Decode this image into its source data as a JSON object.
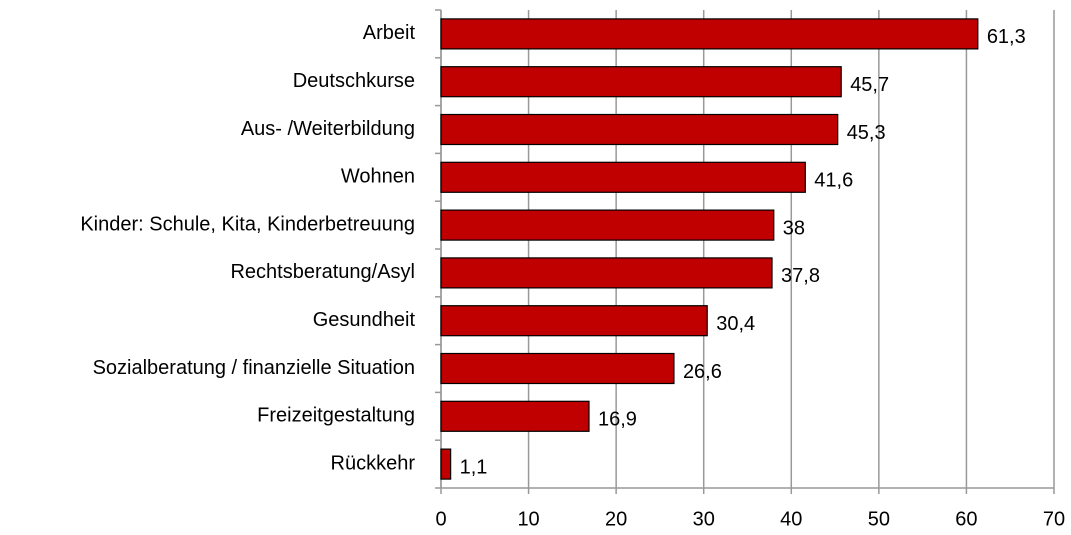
{
  "chart_data": {
    "type": "hbar",
    "categories": [
      "Arbeit",
      "Deutschkurse",
      "Aus- /Weiterbildung",
      "Wohnen",
      "Kinder: Schule, Kita, Kinderbetreuung",
      "Rechtsberatung/Asyl",
      "Gesundheit",
      "Sozialberatung / finanzielle Situation",
      "Freizeitgestaltung",
      "Rückkehr"
    ],
    "values": [
      61.3,
      45.7,
      45.3,
      41.6,
      38,
      37.8,
      30.4,
      26.6,
      16.9,
      1.1
    ],
    "value_labels": [
      "61,3",
      "45,7",
      "45,3",
      "41,6",
      "38",
      "37,8",
      "30,4",
      "26,6",
      "16,9",
      "1,1"
    ],
    "color": "#c00000",
    "xlim": [
      0,
      70
    ],
    "xticks": [
      0,
      10,
      20,
      30,
      40,
      50,
      60,
      70
    ],
    "grid": true
  }
}
